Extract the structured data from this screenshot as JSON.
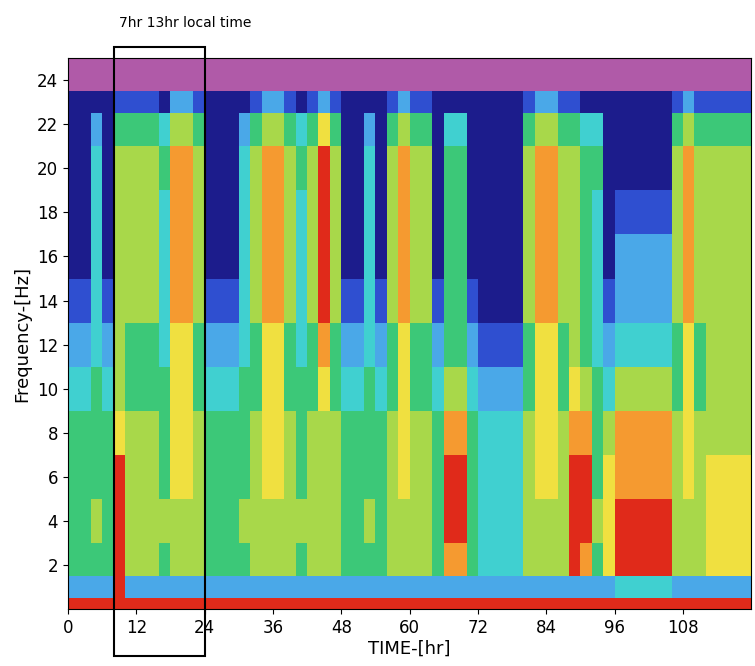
{
  "chart_data": {
    "type": "heatmap",
    "xlabel": "TIME-[hr]",
    "ylabel": "Frequency-[Hz]",
    "xlim": [
      0,
      120
    ],
    "ylim": [
      0,
      25
    ],
    "xticks": [
      0,
      12,
      24,
      36,
      48,
      60,
      72,
      84,
      96,
      108
    ],
    "yticks": [
      2,
      4,
      6,
      8,
      10,
      12,
      14,
      16,
      18,
      20,
      22,
      24
    ],
    "annotations": [
      {
        "text": "7hr 13hr local time",
        "x": [
          8,
          24
        ]
      }
    ],
    "x": [
      0,
      2,
      4,
      6,
      8,
      10,
      12,
      14,
      16,
      18,
      20,
      22,
      24,
      26,
      28,
      30,
      32,
      34,
      36,
      38,
      40,
      42,
      44,
      46,
      48,
      50,
      52,
      54,
      56,
      58,
      60,
      62,
      64,
      66,
      68,
      70,
      72,
      74,
      76,
      78,
      80,
      82,
      84,
      86,
      88,
      90,
      92,
      94,
      96,
      98,
      100,
      102,
      104,
      106,
      108,
      110,
      112,
      114,
      116,
      118,
      120
    ],
    "y": [
      0,
      0.5,
      1.5,
      3,
      5,
      7,
      9,
      11,
      13,
      15,
      17,
      19,
      21,
      22.5,
      23.5,
      25
    ],
    "cells": [
      [
        9,
        9,
        9,
        9,
        9,
        9,
        9,
        9,
        9,
        9,
        9,
        9,
        9,
        9,
        9,
        9,
        9,
        9,
        9,
        9,
        9,
        9,
        9,
        9,
        9,
        9,
        9,
        9,
        9,
        9,
        9,
        9,
        9,
        9,
        9,
        9,
        9,
        9,
        9,
        9,
        9,
        9,
        9,
        9,
        9,
        9,
        9,
        9,
        9,
        9,
        9,
        9,
        9,
        9,
        9,
        9,
        9,
        9,
        9,
        9
      ],
      [
        3,
        3,
        3,
        3,
        9,
        3,
        3,
        3,
        3,
        3,
        3,
        3,
        3,
        3,
        3,
        3,
        3,
        3,
        3,
        3,
        3,
        3,
        3,
        3,
        3,
        3,
        3,
        3,
        3,
        3,
        3,
        3,
        3,
        3,
        3,
        3,
        3,
        3,
        3,
        3,
        3,
        3,
        3,
        3,
        3,
        3,
        3,
        3,
        4,
        4,
        4,
        4,
        4,
        3,
        3,
        3,
        3,
        3,
        3,
        3
      ],
      [
        5,
        5,
        5,
        5,
        9,
        6,
        6,
        6,
        5,
        6,
        6,
        6,
        5,
        5,
        5,
        5,
        6,
        6,
        6,
        6,
        5,
        6,
        6,
        6,
        5,
        5,
        5,
        5,
        6,
        6,
        6,
        6,
        5,
        8,
        8,
        5,
        4,
        4,
        4,
        4,
        6,
        6,
        6,
        6,
        9,
        8,
        5,
        7,
        9,
        9,
        9,
        9,
        9,
        6,
        6,
        6,
        7,
        7,
        7,
        7
      ],
      [
        5,
        5,
        6,
        5,
        9,
        6,
        6,
        6,
        6,
        6,
        6,
        6,
        5,
        5,
        5,
        6,
        6,
        6,
        6,
        6,
        6,
        6,
        6,
        6,
        5,
        5,
        6,
        5,
        6,
        6,
        6,
        6,
        5,
        9,
        9,
        5,
        4,
        4,
        4,
        4,
        6,
        6,
        6,
        6,
        9,
        9,
        6,
        7,
        9,
        9,
        9,
        9,
        9,
        6,
        6,
        6,
        7,
        7,
        7,
        7
      ],
      [
        5,
        5,
        5,
        5,
        9,
        6,
        6,
        6,
        5,
        7,
        7,
        6,
        5,
        5,
        5,
        5,
        6,
        7,
        7,
        6,
        5,
        6,
        6,
        6,
        5,
        5,
        5,
        5,
        6,
        7,
        6,
        6,
        5,
        9,
        9,
        5,
        4,
        4,
        4,
        4,
        6,
        7,
        7,
        6,
        9,
        9,
        5,
        7,
        8,
        8,
        8,
        8,
        8,
        6,
        7,
        6,
        7,
        7,
        7,
        7
      ],
      [
        5,
        5,
        5,
        5,
        7,
        6,
        6,
        6,
        5,
        7,
        7,
        6,
        5,
        5,
        5,
        5,
        6,
        7,
        7,
        6,
        5,
        6,
        6,
        6,
        5,
        5,
        5,
        5,
        6,
        7,
        6,
        6,
        5,
        8,
        8,
        5,
        4,
        4,
        4,
        4,
        6,
        7,
        7,
        6,
        8,
        8,
        5,
        6,
        8,
        8,
        8,
        8,
        8,
        6,
        7,
        6,
        6,
        6,
        6,
        6
      ],
      [
        4,
        4,
        5,
        4,
        6,
        5,
        5,
        5,
        5,
        7,
        7,
        5,
        4,
        4,
        4,
        5,
        5,
        7,
        7,
        5,
        5,
        5,
        7,
        5,
        4,
        4,
        5,
        4,
        5,
        7,
        5,
        5,
        4,
        6,
        6,
        4,
        3,
        3,
        3,
        3,
        5,
        7,
        7,
        5,
        7,
        6,
        5,
        4,
        6,
        6,
        6,
        6,
        6,
        5,
        7,
        5,
        6,
        6,
        6,
        6
      ],
      [
        3,
        3,
        4,
        3,
        6,
        5,
        5,
        5,
        4,
        7,
        7,
        5,
        3,
        3,
        3,
        4,
        5,
        7,
        7,
        5,
        4,
        5,
        8,
        5,
        3,
        3,
        4,
        3,
        5,
        7,
        5,
        5,
        3,
        5,
        5,
        3,
        2,
        2,
        2,
        2,
        5,
        7,
        7,
        5,
        6,
        5,
        4,
        3,
        4,
        4,
        4,
        4,
        4,
        5,
        7,
        5,
        6,
        6,
        6,
        6
      ],
      [
        2,
        2,
        4,
        2,
        6,
        6,
        6,
        6,
        4,
        8,
        8,
        6,
        2,
        2,
        2,
        4,
        6,
        8,
        8,
        6,
        4,
        6,
        9,
        6,
        2,
        2,
        4,
        2,
        6,
        8,
        6,
        6,
        2,
        5,
        5,
        2,
        1,
        1,
        1,
        1,
        6,
        8,
        8,
        6,
        6,
        5,
        4,
        2,
        3,
        3,
        3,
        3,
        3,
        6,
        8,
        6,
        6,
        6,
        6,
        6
      ],
      [
        1,
        1,
        4,
        1,
        6,
        6,
        6,
        6,
        4,
        8,
        8,
        6,
        1,
        1,
        1,
        4,
        6,
        8,
        8,
        6,
        4,
        6,
        9,
        6,
        1,
        1,
        4,
        1,
        6,
        8,
        6,
        6,
        1,
        5,
        5,
        1,
        1,
        1,
        1,
        1,
        6,
        8,
        8,
        6,
        6,
        5,
        4,
        1,
        3,
        3,
        3,
        3,
        3,
        6,
        8,
        6,
        6,
        6,
        6,
        6
      ],
      [
        1,
        1,
        4,
        1,
        6,
        6,
        6,
        6,
        4,
        8,
        8,
        6,
        1,
        1,
        1,
        4,
        6,
        8,
        8,
        6,
        4,
        6,
        9,
        6,
        1,
        1,
        4,
        1,
        6,
        8,
        6,
        6,
        1,
        5,
        5,
        1,
        1,
        1,
        1,
        1,
        6,
        8,
        8,
        6,
        6,
        5,
        4,
        1,
        2,
        2,
        2,
        2,
        2,
        6,
        8,
        6,
        6,
        6,
        6,
        6
      ],
      [
        1,
        1,
        4,
        1,
        6,
        6,
        6,
        6,
        5,
        8,
        8,
        6,
        1,
        1,
        1,
        4,
        6,
        8,
        8,
        6,
        5,
        6,
        9,
        6,
        1,
        1,
        4,
        1,
        6,
        8,
        6,
        6,
        1,
        5,
        5,
        1,
        1,
        1,
        1,
        1,
        6,
        8,
        8,
        6,
        6,
        5,
        5,
        1,
        1,
        1,
        1,
        1,
        1,
        6,
        8,
        6,
        6,
        6,
        6,
        6
      ],
      [
        1,
        1,
        3,
        1,
        5,
        5,
        5,
        5,
        4,
        6,
        6,
        5,
        1,
        1,
        1,
        3,
        5,
        6,
        6,
        5,
        4,
        5,
        7,
        5,
        1,
        1,
        3,
        1,
        5,
        6,
        5,
        5,
        1,
        4,
        4,
        1,
        1,
        1,
        1,
        1,
        5,
        6,
        6,
        5,
        5,
        4,
        4,
        1,
        1,
        1,
        1,
        1,
        1,
        5,
        6,
        5,
        5,
        5,
        5,
        5
      ],
      [
        1,
        1,
        1,
        1,
        2,
        2,
        2,
        2,
        1,
        3,
        3,
        2,
        1,
        1,
        1,
        1,
        2,
        3,
        3,
        2,
        1,
        2,
        3,
        2,
        1,
        1,
        1,
        1,
        2,
        3,
        2,
        2,
        1,
        1,
        1,
        1,
        1,
        1,
        1,
        1,
        2,
        3,
        3,
        2,
        2,
        1,
        1,
        1,
        1,
        1,
        1,
        1,
        1,
        2,
        3,
        2,
        2,
        2,
        2,
        2
      ],
      [
        0,
        0,
        0,
        0,
        0,
        0,
        0,
        0,
        0,
        0,
        0,
        0,
        0,
        0,
        0,
        0,
        0,
        0,
        0,
        0,
        0,
        0,
        0,
        0,
        0,
        0,
        0,
        0,
        0,
        0,
        0,
        0,
        0,
        0,
        0,
        0,
        0,
        0,
        0,
        0,
        0,
        0,
        0,
        0,
        0,
        0,
        0,
        0,
        0,
        0,
        0,
        0,
        0,
        0,
        0,
        0,
        0,
        0,
        0,
        0
      ]
    ]
  }
}
